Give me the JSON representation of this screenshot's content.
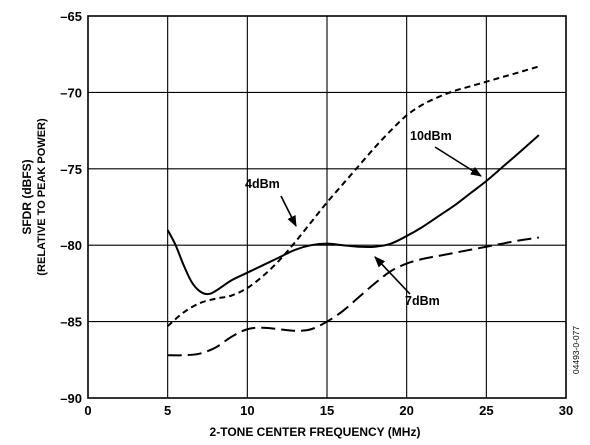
{
  "chart_data": {
    "type": "line",
    "xlabel": "2-TONE CENTER FREQUENCY (MHz)",
    "ylabel": "SFDR (dBFS)",
    "ylabel_sub": "(RELATIVE TO PEAK POWER)",
    "xlim": [
      0,
      30
    ],
    "ylim": [
      -90,
      -65
    ],
    "x_ticks": [
      0,
      5,
      10,
      15,
      20,
      25,
      30
    ],
    "y_ticks": [
      -90,
      -85,
      -80,
      -75,
      -70,
      -65
    ],
    "x_tick_labels": [
      "0",
      "5",
      "10",
      "15",
      "20",
      "25",
      "30"
    ],
    "y_tick_labels": [
      "–90",
      "–85",
      "–80",
      "–75",
      "–70",
      "–65"
    ],
    "grid": true,
    "figure_id": "04493-0-077",
    "series": [
      {
        "name": "4dBm",
        "line_style": "short-dash",
        "x": [
          5,
          6,
          7,
          8,
          9,
          10,
          11,
          12,
          13,
          14,
          15,
          16,
          17,
          18,
          19,
          20,
          21,
          22,
          23,
          24,
          25,
          26,
          27,
          28.3
        ],
        "y": [
          -85.3,
          -84.4,
          -83.8,
          -83.5,
          -83.3,
          -82.8,
          -82.0,
          -81.0,
          -79.8,
          -78.5,
          -77.2,
          -76.0,
          -74.8,
          -73.6,
          -72.5,
          -71.5,
          -70.8,
          -70.3,
          -69.9,
          -69.6,
          -69.3,
          -69.0,
          -68.7,
          -68.3
        ]
      },
      {
        "name": "10dBm",
        "line_style": "solid",
        "x": [
          5,
          5.5,
          6,
          6.5,
          7,
          7.5,
          8,
          9,
          10,
          11,
          12,
          13,
          14,
          15,
          16,
          17,
          18,
          19,
          20,
          21,
          22,
          23,
          24,
          25,
          26,
          27,
          28.3
        ],
        "y": [
          -79.0,
          -80.0,
          -81.3,
          -82.4,
          -83.0,
          -83.2,
          -83.0,
          -82.3,
          -81.8,
          -81.3,
          -80.8,
          -80.3,
          -80.0,
          -79.9,
          -80.0,
          -80.1,
          -80.1,
          -79.9,
          -79.4,
          -78.8,
          -78.1,
          -77.4,
          -76.6,
          -75.8,
          -74.9,
          -74.0,
          -72.8
        ]
      },
      {
        "name": "7dBm",
        "line_style": "long-dash",
        "x": [
          5,
          6,
          7,
          8,
          9,
          10,
          11,
          12,
          13,
          14,
          15,
          16,
          17,
          18,
          19,
          20,
          21,
          22,
          23,
          24,
          25,
          26,
          27,
          28.3
        ],
        "y": [
          -87.2,
          -87.2,
          -87.1,
          -86.7,
          -86.0,
          -85.5,
          -85.4,
          -85.5,
          -85.6,
          -85.5,
          -85.0,
          -84.3,
          -83.4,
          -82.5,
          -81.7,
          -81.2,
          -80.9,
          -80.7,
          -80.5,
          -80.3,
          -80.1,
          -79.9,
          -79.7,
          -79.5
        ]
      }
    ],
    "annotations": [
      {
        "text": "4dBm",
        "series": "4dBm"
      },
      {
        "text": "10dBm",
        "series": "10dBm"
      },
      {
        "text": "7dBm",
        "series": "7dBm"
      }
    ]
  }
}
